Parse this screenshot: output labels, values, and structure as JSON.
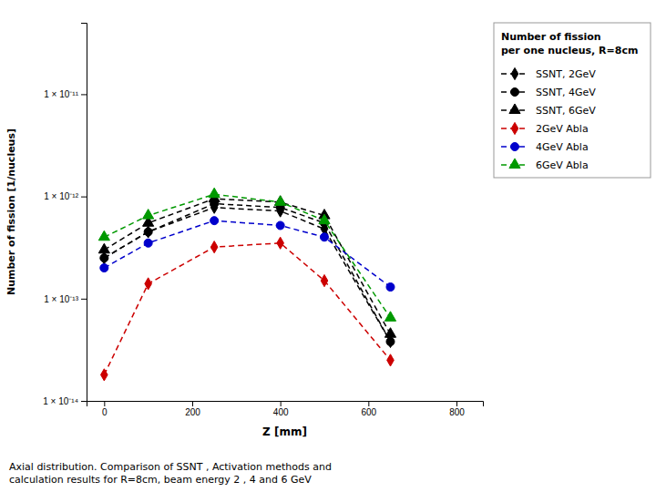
{
  "chart_data": {
    "type": "line",
    "title": "Number of fission\nper one nucleus, R=8cm",
    "x_label": "Z [mm]",
    "y_label": "Number of fission [1/nucleus]",
    "annotations": [
      "Axial distribution. Comparison of SSNT , Activation methods and\ncalculation results for R=8cm, beam energy 2 , 4 and 6 GeV"
    ],
    "x": [
      0,
      100,
      250,
      400,
      500,
      650
    ],
    "xlim": [
      -40,
      860
    ],
    "xticks": [
      0,
      200,
      400,
      600,
      800
    ],
    "ylim": [
      1e-14,
      5e-11
    ],
    "yticks": [
      {
        "value": 1e-14,
        "label": "1 × 10⁻¹⁴"
      },
      {
        "value": 1e-13,
        "label": "1 × 10⁻¹³"
      },
      {
        "value": 1e-12,
        "label": "1 × 10⁻¹²"
      },
      {
        "value": 1e-11,
        "label": "1 × 10⁻¹¹"
      }
    ],
    "log": "y",
    "grid": false,
    "legend": "right",
    "series": [
      {
        "name": "SSNT, 2GeV",
        "color": "#000000",
        "marker": "diamond",
        "line_style": "dashed",
        "values": [
          2.5e-13,
          4.5e-13,
          7.8e-13,
          7.2e-13,
          4.8e-13,
          3.8e-14
        ]
      },
      {
        "name": "SSNT, 4GeV",
        "color": "#000000",
        "marker": "circle",
        "line_style": "dashed",
        "values": [
          2.5e-13,
          4.5e-13,
          8.5e-13,
          7.8e-13,
          5.5e-13,
          3.8e-14
        ]
      },
      {
        "name": "SSNT, 6GeV",
        "color": "#000000",
        "marker": "triangle",
        "line_style": "dashed",
        "values": [
          3e-13,
          5.5e-13,
          9.5e-13,
          8.8e-13,
          6.5e-13,
          4.5e-14
        ]
      },
      {
        "name": "2GeV Abla",
        "color": "#cc0000",
        "marker": "diamond",
        "line_style": "dashed",
        "values": [
          1.8e-14,
          1.4e-13,
          3.2e-13,
          3.5e-13,
          1.5e-13,
          2.5e-14
        ]
      },
      {
        "name": "4GeV Abla",
        "color": "#0000cc",
        "marker": "circle",
        "line_style": "dashed",
        "values": [
          2e-13,
          3.5e-13,
          5.8e-13,
          5.2e-13,
          4e-13,
          1.3e-13
        ]
      },
      {
        "name": "6GeV Abla",
        "color": "#009900",
        "marker": "triangle",
        "line_style": "dashed",
        "values": [
          4e-13,
          6.5e-13,
          1.05e-12,
          8.8e-13,
          5.8e-13,
          6.5e-14
        ]
      }
    ]
  }
}
